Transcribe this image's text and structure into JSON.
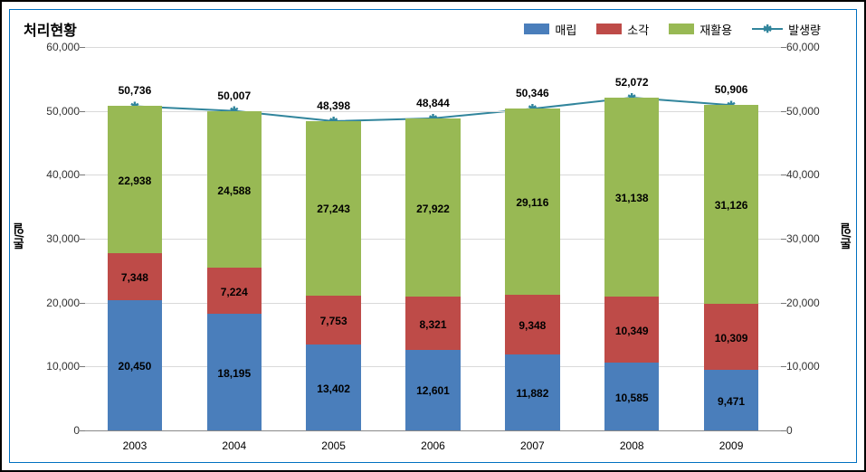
{
  "chart": {
    "title": "처리현황",
    "type": "stacked-bar-with-line",
    "legend": {
      "series1": {
        "label": "매립",
        "color": "#4a7ebb"
      },
      "series2": {
        "label": "소각",
        "color": "#be4b48"
      },
      "series3": {
        "label": "재활용",
        "color": "#98b954"
      },
      "line": {
        "label": "발생량",
        "color": "#31859c"
      }
    },
    "yaxis": {
      "left_label": "톤/일",
      "right_label": "톤/일",
      "min": 0,
      "max": 60000,
      "step": 10000,
      "tick_labels": [
        "0",
        "10,000",
        "20,000",
        "30,000",
        "40,000",
        "50,000",
        "60,000"
      ],
      "grid_color": "#d9d9d9"
    },
    "categories": [
      "2003",
      "2004",
      "2005",
      "2006",
      "2007",
      "2008",
      "2009"
    ],
    "bars": {
      "series1_values": [
        20450,
        18195,
        13402,
        12601,
        11882,
        10585,
        9471
      ],
      "series2_values": [
        7348,
        7224,
        7753,
        8321,
        9348,
        10349,
        10309
      ],
      "series3_values": [
        22938,
        24588,
        27243,
        27922,
        29116,
        31138,
        31126
      ],
      "series1_labels": [
        "20,450",
        "18,195",
        "13,402",
        "12,601",
        "11,882",
        "10,585",
        "9,471"
      ],
      "series2_labels": [
        "7,348",
        "7,224",
        "7,753",
        "8,321",
        "9,348",
        "10,349",
        "10,309"
      ],
      "series3_labels": [
        "22,938",
        "24,588",
        "27,243",
        "27,922",
        "29,116",
        "31,138",
        "31,126"
      ],
      "bar_width_ratio": 0.55
    },
    "line": {
      "values": [
        50736,
        50007,
        48398,
        48844,
        50346,
        52072,
        50906
      ],
      "labels": [
        "50,736",
        "50,007",
        "48,398",
        "48,844",
        "50,346",
        "52,072",
        "50,906"
      ],
      "marker": "✱",
      "line_width": 2
    },
    "background_color": "#ffffff",
    "font_family": "Malgun Gothic",
    "axis_fontsize": 12,
    "title_fontsize": 16,
    "label_color": "#000000"
  }
}
